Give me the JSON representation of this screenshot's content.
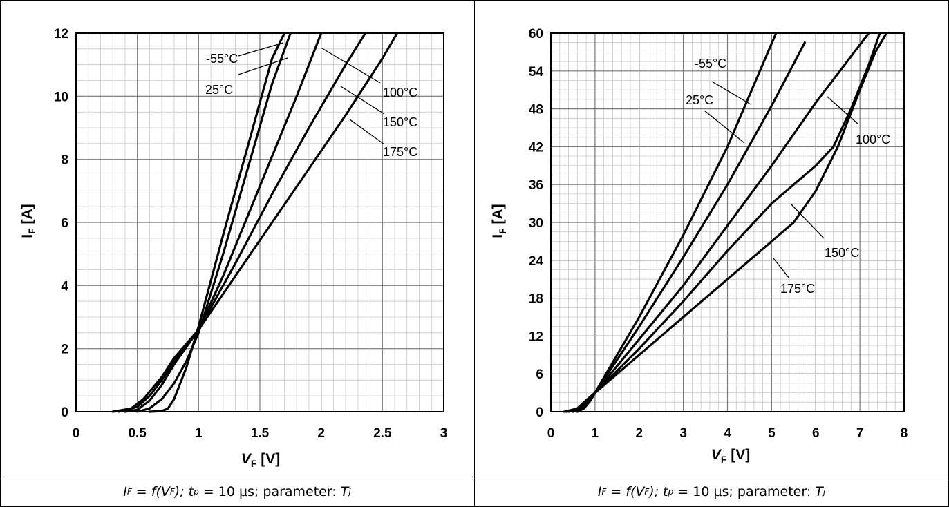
{
  "chart_data": [
    {
      "type": "line",
      "xlabel": "V_F [V]",
      "ylabel": "I_F [A]",
      "xlim": [
        0,
        3
      ],
      "ylim": [
        0,
        12
      ],
      "xticks": [
        0,
        0.5,
        1,
        1.5,
        2,
        2.5,
        3
      ],
      "xtick_labels": [
        "0",
        "0.5",
        "1",
        "1.5",
        "2",
        "2.5",
        "3"
      ],
      "yticks": [
        0,
        2,
        4,
        6,
        8,
        10,
        12
      ],
      "ytick_labels": [
        "0",
        "2",
        "4",
        "6",
        "8",
        "10",
        "12"
      ],
      "grid": true,
      "series": [
        {
          "name": "-55°C",
          "x": [
            0.6,
            0.7,
            0.75,
            0.8,
            0.9,
            1.0,
            1.2,
            1.4,
            1.6,
            1.7
          ],
          "y": [
            0,
            0.02,
            0.1,
            0.4,
            1.4,
            2.7,
            5.6,
            8.4,
            11.2,
            12
          ]
        },
        {
          "name": "25°C",
          "x": [
            0.5,
            0.6,
            0.7,
            0.8,
            0.9,
            1.0,
            1.2,
            1.4,
            1.6,
            1.75
          ],
          "y": [
            0,
            0.1,
            0.4,
            0.9,
            1.6,
            2.5,
            5.0,
            7.7,
            10.4,
            12
          ]
        },
        {
          "name": "100°C",
          "x": [
            0.4,
            0.5,
            0.6,
            0.7,
            0.8,
            1.0,
            1.2,
            1.4,
            1.6,
            1.8,
            2.0
          ],
          "y": [
            0,
            0.06,
            0.35,
            0.85,
            1.5,
            2.6,
            4.3,
            6.2,
            8.1,
            10.0,
            12
          ]
        },
        {
          "name": "150°C",
          "x": [
            0.35,
            0.5,
            0.6,
            0.7,
            0.8,
            1.0,
            1.3,
            1.6,
            1.9,
            2.2,
            2.36
          ],
          "y": [
            0,
            0.15,
            0.5,
            1.0,
            1.6,
            2.6,
            4.7,
            6.9,
            9.0,
            11.0,
            12
          ]
        },
        {
          "name": "175°C",
          "x": [
            0.3,
            0.45,
            0.55,
            0.7,
            0.8,
            1.0,
            1.3,
            1.6,
            1.9,
            2.2,
            2.5,
            2.62
          ],
          "y": [
            0,
            0.1,
            0.4,
            1.1,
            1.7,
            2.6,
            4.3,
            6.0,
            7.7,
            9.4,
            11.2,
            12
          ]
        }
      ],
      "annotations": [
        "-55°C",
        "25°C",
        "100°C",
        "150°C",
        "175°C"
      ]
    },
    {
      "type": "line",
      "xlabel": "V_F [V]",
      "ylabel": "I_F [A]",
      "xlim": [
        0,
        8
      ],
      "ylim": [
        0,
        60
      ],
      "xticks": [
        0,
        1,
        2,
        3,
        4,
        5,
        6,
        7,
        8
      ],
      "xtick_labels": [
        "0",
        "1",
        "2",
        "3",
        "4",
        "5",
        "6",
        "7",
        "8"
      ],
      "yticks": [
        0,
        6,
        12,
        18,
        24,
        30,
        36,
        42,
        48,
        54,
        60
      ],
      "ytick_labels": [
        "0",
        "6",
        "12",
        "18",
        "24",
        "30",
        "36",
        "42",
        "48",
        "54",
        "60"
      ],
      "grid": true,
      "series": [
        {
          "name": "-55°C",
          "x": [
            0.6,
            0.75,
            0.9,
            1.0,
            2.0,
            3.0,
            4.0,
            5.1
          ],
          "y": [
            0,
            0.5,
            1.8,
            3.0,
            15.0,
            28.0,
            42.0,
            60
          ]
        },
        {
          "name": "25°C",
          "x": [
            0.5,
            0.7,
            0.9,
            1.0,
            2.0,
            3.0,
            4.0,
            5.0,
            5.75
          ],
          "y": [
            0,
            0.6,
            1.8,
            3.0,
            13.5,
            24.5,
            36.0,
            48.5,
            58.5
          ]
        },
        {
          "name": "100°C",
          "x": [
            0.4,
            0.6,
            0.8,
            1.0,
            2.0,
            3.0,
            4.0,
            5.0,
            6.0,
            7.2
          ],
          "y": [
            0,
            0.4,
            1.5,
            3.0,
            11.5,
            20.0,
            29.5,
            39.0,
            49.0,
            60
          ]
        },
        {
          "name": "150°C",
          "x": [
            0.35,
            0.6,
            0.8,
            1.0,
            2.0,
            3.0,
            4.0,
            5.0,
            6.0,
            6.4,
            6.8,
            7.2,
            7.45
          ],
          "y": [
            0,
            0.5,
            1.8,
            3.0,
            10.0,
            17.5,
            25.5,
            33.0,
            39.0,
            42.0,
            48.0,
            55.0,
            60
          ]
        },
        {
          "name": "175°C",
          "x": [
            0.3,
            0.6,
            0.8,
            1.0,
            2.0,
            3.0,
            4.0,
            5.0,
            5.5,
            6.0,
            6.5,
            7.0,
            7.35,
            7.6
          ],
          "y": [
            0,
            0.5,
            1.8,
            3.0,
            9.0,
            15.0,
            21.0,
            27.0,
            30.0,
            35.0,
            42.0,
            51.0,
            57.0,
            60
          ]
        }
      ],
      "annotations": [
        "-55°C",
        "25°C",
        "100°C",
        "150°C",
        "175°C"
      ]
    }
  ],
  "captions": [
    {
      "i": "I",
      "i_sub": "F",
      "eq": " = ",
      "f": "f(V",
      "f_sub": "F",
      "close": ");",
      "t": " t",
      "t_sub": "p",
      "rest": " = 10 µs; parameter: ",
      "T": "T",
      "T_sub": "j"
    },
    {
      "i": "I",
      "i_sub": "F",
      "eq": " = ",
      "f": "f(V",
      "f_sub": "F",
      "close": ");",
      "t": " t",
      "t_sub": "p",
      "rest": " = 10 µs; parameter: ",
      "T": "T",
      "T_sub": "j"
    }
  ],
  "axis_parts": {
    "v": "V",
    "v_sub": "F",
    "v_unit": " [V]",
    "i": "I",
    "i_sub": "F",
    "i_unit": " [A]"
  }
}
